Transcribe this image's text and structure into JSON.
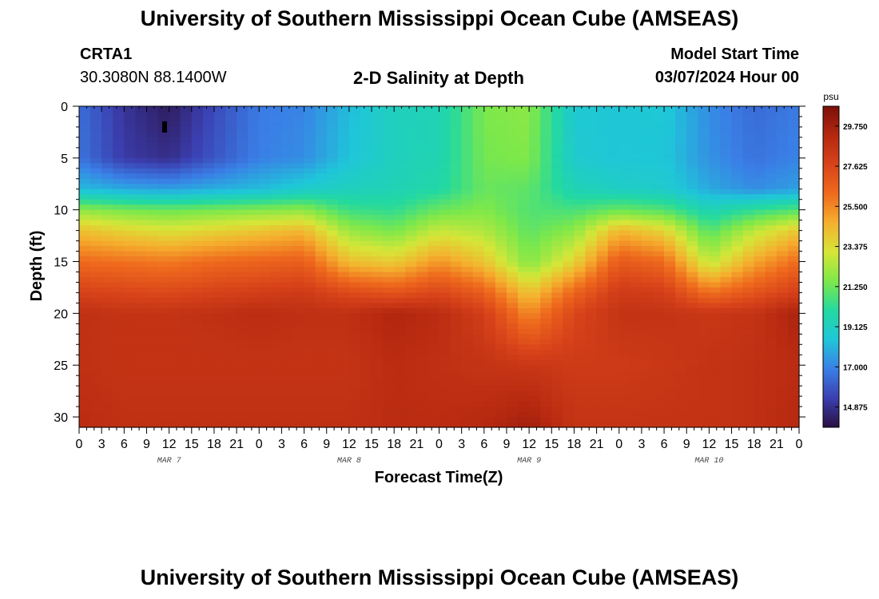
{
  "header": {
    "title": "University of Southern Mississippi Ocean Cube (AMSEAS)",
    "station_id": "CRTA1",
    "coords": "30.3080N  88.1400W",
    "subtitle": "2-D Salinity at Depth",
    "model_start_label": "Model Start Time",
    "model_start_value": "03/07/2024 Hour 00"
  },
  "footer": {
    "title": "University of Southern Mississippi Ocean Cube (AMSEAS)"
  },
  "colors": {
    "scale": [
      "#2a1040",
      "#3b3fb0",
      "#3a7fe6",
      "#1fc6d9",
      "#23d9a0",
      "#7de84a",
      "#d6e638",
      "#f5b02e",
      "#ef6a1d",
      "#d8431a",
      "#b52810",
      "#7c0f08"
    ]
  },
  "chart_data": {
    "type": "heatmap",
    "xlabel": "Forecast Time(Z)",
    "ylabel": "Depth (ft)",
    "x_ticks": [
      "0",
      "3",
      "6",
      "9",
      "12",
      "15",
      "18",
      "21",
      "0",
      "3",
      "6",
      "9",
      "12",
      "15",
      "18",
      "21",
      "0",
      "3",
      "6",
      "9",
      "12",
      "15",
      "18",
      "21",
      "0",
      "3",
      "6",
      "9",
      "12",
      "15",
      "18",
      "21",
      "0"
    ],
    "date_labels": [
      {
        "label": "MAR 7",
        "hour": 12
      },
      {
        "label": "MAR 8",
        "hour": 36
      },
      {
        "label": "MAR 9",
        "hour": 60
      },
      {
        "label": "MAR 10",
        "hour": 84
      }
    ],
    "x_range_hours": [
      0,
      96
    ],
    "y_ticks": [
      0,
      5,
      10,
      15,
      20,
      25,
      30
    ],
    "ylim": [
      0,
      31
    ],
    "colorbar": {
      "unit": "psu",
      "ticks": [
        "29.750",
        "27.625",
        "25.500",
        "23.375",
        "21.250",
        "19.125",
        "17.000",
        "14.875"
      ],
      "min": 13.8,
      "max": 30.8
    },
    "time_hours": [
      0,
      6,
      12,
      18,
      24,
      30,
      36,
      42,
      48,
      54,
      60,
      66,
      72,
      78,
      84,
      90,
      96
    ],
    "depths_ft": [
      0,
      5,
      8,
      10,
      12,
      15,
      18,
      20,
      25,
      31
    ],
    "salinity_psu": [
      [
        16.5,
        15.0,
        14.2,
        15.6,
        16.8,
        17.0,
        18.2,
        19.2,
        19.4,
        21.5,
        21.8,
        18.6,
        18.5,
        18.6,
        17.2,
        16.4,
        16.8
      ],
      [
        16.6,
        15.2,
        14.8,
        15.9,
        16.9,
        17.2,
        18.4,
        19.2,
        19.5,
        21.4,
        21.6,
        18.7,
        18.5,
        18.5,
        17.3,
        16.6,
        17.0
      ],
      [
        18.2,
        17.8,
        17.6,
        17.9,
        18.2,
        18.8,
        19.2,
        19.4,
        19.8,
        21.2,
        21.0,
        19.4,
        19.0,
        18.8,
        17.8,
        17.2,
        17.6
      ],
      [
        21.8,
        21.4,
        21.2,
        21.4,
        21.6,
        21.8,
        20.4,
        20.2,
        21.2,
        21.6,
        20.8,
        20.6,
        21.2,
        20.8,
        19.4,
        20.2,
        20.8
      ],
      [
        24.2,
        23.6,
        23.2,
        23.6,
        24.0,
        24.4,
        22.0,
        21.4,
        22.8,
        22.4,
        21.0,
        21.8,
        24.4,
        23.6,
        20.8,
        22.6,
        24.0
      ],
      [
        26.2,
        26.0,
        25.8,
        26.2,
        26.4,
        26.6,
        24.2,
        23.8,
        25.2,
        24.0,
        21.6,
        23.6,
        26.8,
        26.2,
        22.6,
        24.8,
        26.2
      ],
      [
        27.8,
        27.6,
        27.5,
        27.8,
        28.0,
        28.2,
        27.4,
        27.0,
        27.6,
        26.6,
        24.0,
        26.4,
        28.2,
        28.0,
        26.0,
        27.0,
        28.0
      ],
      [
        28.8,
        28.6,
        28.6,
        28.8,
        29.0,
        28.8,
        28.8,
        29.4,
        29.0,
        28.0,
        25.4,
        27.6,
        28.6,
        28.6,
        28.4,
        28.6,
        29.6
      ],
      [
        28.8,
        28.6,
        28.6,
        28.6,
        28.6,
        28.6,
        28.6,
        29.0,
        28.8,
        28.6,
        28.4,
        28.2,
        28.2,
        28.4,
        28.6,
        28.8,
        29.0
      ],
      [
        29.0,
        28.8,
        28.8,
        28.8,
        28.8,
        28.8,
        28.8,
        29.0,
        29.0,
        29.2,
        29.8,
        28.6,
        28.6,
        28.6,
        28.6,
        28.8,
        29.2
      ]
    ]
  }
}
